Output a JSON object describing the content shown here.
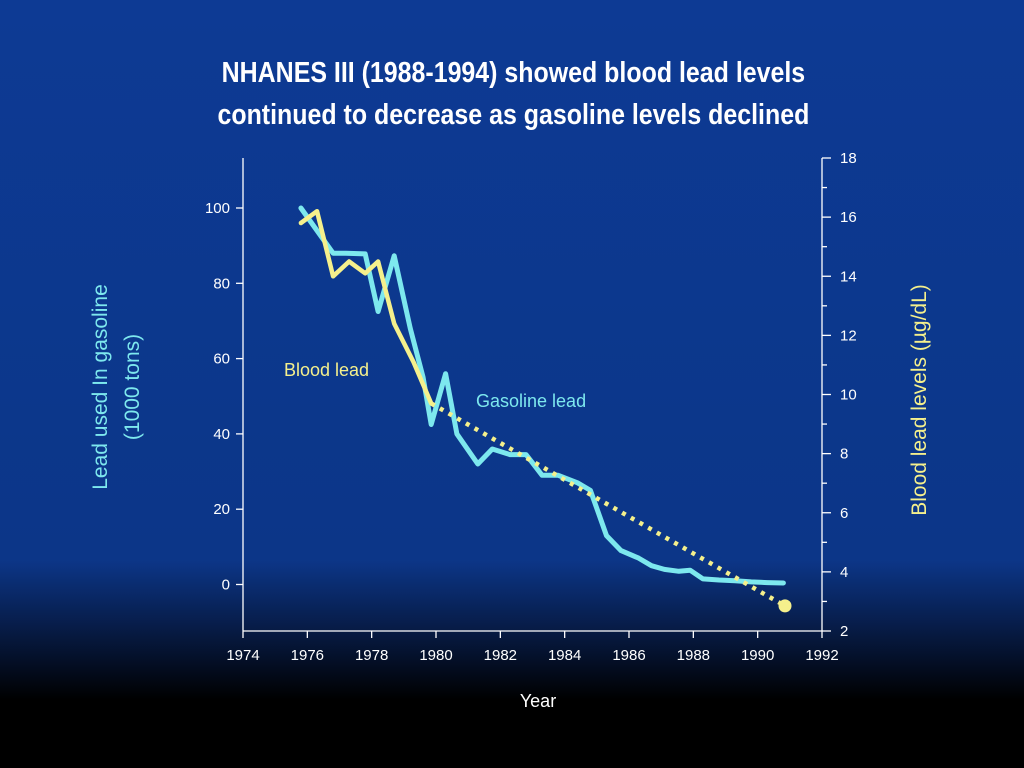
{
  "slide": {
    "title_line1": "NHANES III (1988-1994) showed blood lead levels",
    "title_line2": "continued to decrease as gasoline levels declined"
  },
  "colors": {
    "background": "#0c3688",
    "gasoline": "#7de8ee",
    "blood": "#f5f08c",
    "text": "#ffffff"
  },
  "chart_data": {
    "type": "line",
    "title": "NHANES III (1988-1994) showed blood lead levels continued to decrease as gasoline levels declined",
    "xlabel": "Year",
    "ylabel_left_line1": "Lead used In gasoline",
    "ylabel_left_line2": "(1000 tons)",
    "ylabel_right": "Blood lead levels (µg/dL)",
    "x_ticks": [
      "1974",
      "1976",
      "1978",
      "1980",
      "1982",
      "1984",
      "1986",
      "1988",
      "1990",
      "1992"
    ],
    "y_left_ticks": [
      "0",
      "20",
      "40",
      "60",
      "80",
      "100"
    ],
    "y_right_ticks": [
      "2",
      "4",
      "6",
      "8",
      "10",
      "12",
      "14",
      "16",
      "18"
    ],
    "xlim": [
      1974,
      1992
    ],
    "ylim_left": [
      -10,
      113
    ],
    "ylim_right": [
      2,
      18
    ],
    "grid": false,
    "series": [
      {
        "name": "Gasoline lead",
        "axis": "left",
        "style": "solid",
        "x": [
          1975.8,
          1976.8,
          1977.2,
          1977.8,
          1978.2,
          1978.7,
          1979.2,
          1979.6,
          1979.85,
          1980.3,
          1980.65,
          1981.3,
          1981.75,
          1982.3,
          1982.8,
          1983.3,
          1983.8,
          1984.4,
          1984.8,
          1985.3,
          1985.75,
          1986.3,
          1986.7,
          1987.1,
          1987.55,
          1987.9,
          1988.3,
          1988.8,
          1989.3,
          1989.8,
          1990.3,
          1990.8
        ],
        "values": [
          100,
          88,
          88,
          87.8,
          72.5,
          87.3,
          68,
          55,
          42.5,
          56,
          40,
          32,
          36,
          34.5,
          34.5,
          29,
          29,
          27,
          25,
          13,
          9,
          7,
          5,
          4,
          3.5,
          3.8,
          1.5,
          1.2,
          1,
          0.7,
          0.5,
          0.4
        ]
      },
      {
        "name": "Blood lead",
        "axis": "right",
        "style": "solid",
        "x": [
          1975.8,
          1976.3,
          1976.8,
          1977.3,
          1977.8,
          1978.2,
          1978.7,
          1979.3,
          1979.85
        ],
        "values": [
          15.8,
          16.2,
          14.0,
          14.5,
          14.1,
          14.5,
          12.4,
          11.1,
          9.7
        ]
      },
      {
        "name": "Blood lead trend",
        "axis": "right",
        "style": "dotted",
        "x": [
          1979.85,
          1990.85
        ],
        "values": [
          9.7,
          2.85
        ]
      }
    ],
    "annotations": [
      {
        "text": "Blood lead",
        "series": "Blood lead"
      },
      {
        "text": "Gasoline lead",
        "series": "Gasoline lead"
      }
    ],
    "end_marker": {
      "x": 1990.85,
      "value": 2.85,
      "axis": "right"
    }
  }
}
